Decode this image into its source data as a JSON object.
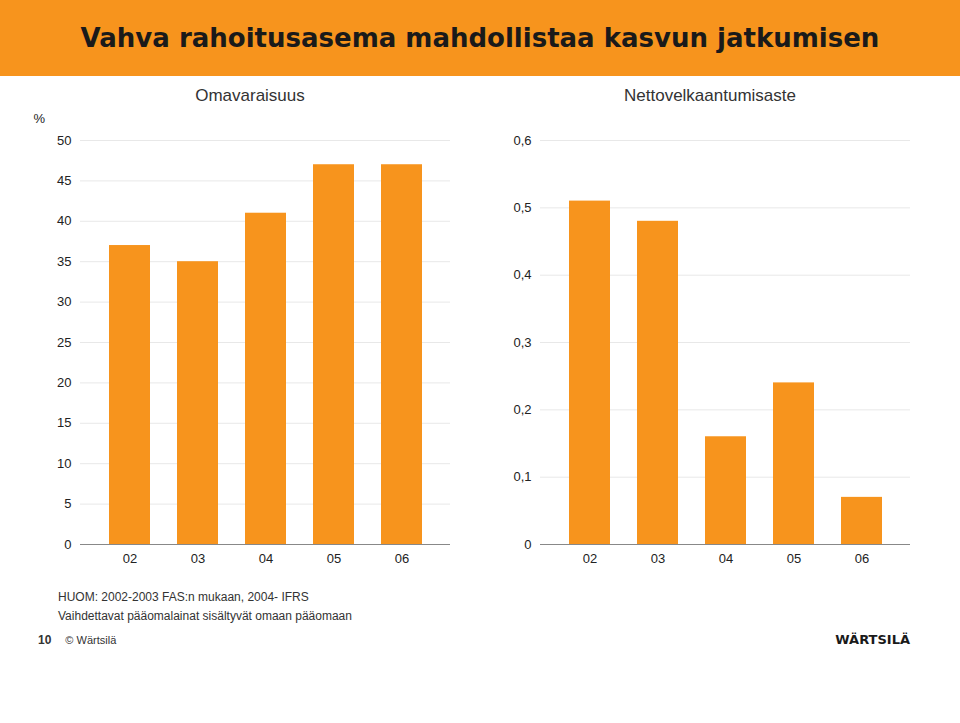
{
  "title": "Vahva rahoitusasema mahdollistaa kasvun jatkumisen",
  "annotations": [
    "HUOM: 2002-2003 FAS:n mukaan, 2004- IFRS",
    "Vaihdettavat pääomalainat sisältyvät omaan pääomaan",
    "10",
    "© Wärtsilä",
    "WÄRTSILÄ"
  ],
  "chart_data": [
    {
      "type": "bar",
      "title": "Omavaraisuus",
      "y_label": "%",
      "categories": [
        "02",
        "03",
        "04",
        "05",
        "06"
      ],
      "values": [
        37,
        35,
        41,
        47,
        47
      ],
      "color": "#F7941D",
      "ylim": [
        0,
        50
      ],
      "yticks": [
        0,
        5,
        10,
        15,
        20,
        25,
        30,
        35,
        40,
        45,
        50
      ],
      "grid": true
    },
    {
      "type": "bar",
      "title": "Nettovelkaantumisaste",
      "categories": [
        "02",
        "03",
        "04",
        "05",
        "06"
      ],
      "values": [
        0.51,
        0.48,
        0.16,
        0.24,
        0.07
      ],
      "color": "#F7941D",
      "ylim": [
        0,
        0.6
      ],
      "yticks": [
        0,
        {
          "value": 0.1,
          "label": "0,1"
        },
        {
          "value": 0.2,
          "label": "0,2"
        },
        {
          "value": 0.3,
          "label": "0,3"
        },
        {
          "value": 0.4,
          "label": "0,4"
        },
        {
          "value": 0.5,
          "label": "0,5"
        },
        {
          "value": 0.6,
          "label": "0,6"
        }
      ],
      "grid": true
    }
  ]
}
